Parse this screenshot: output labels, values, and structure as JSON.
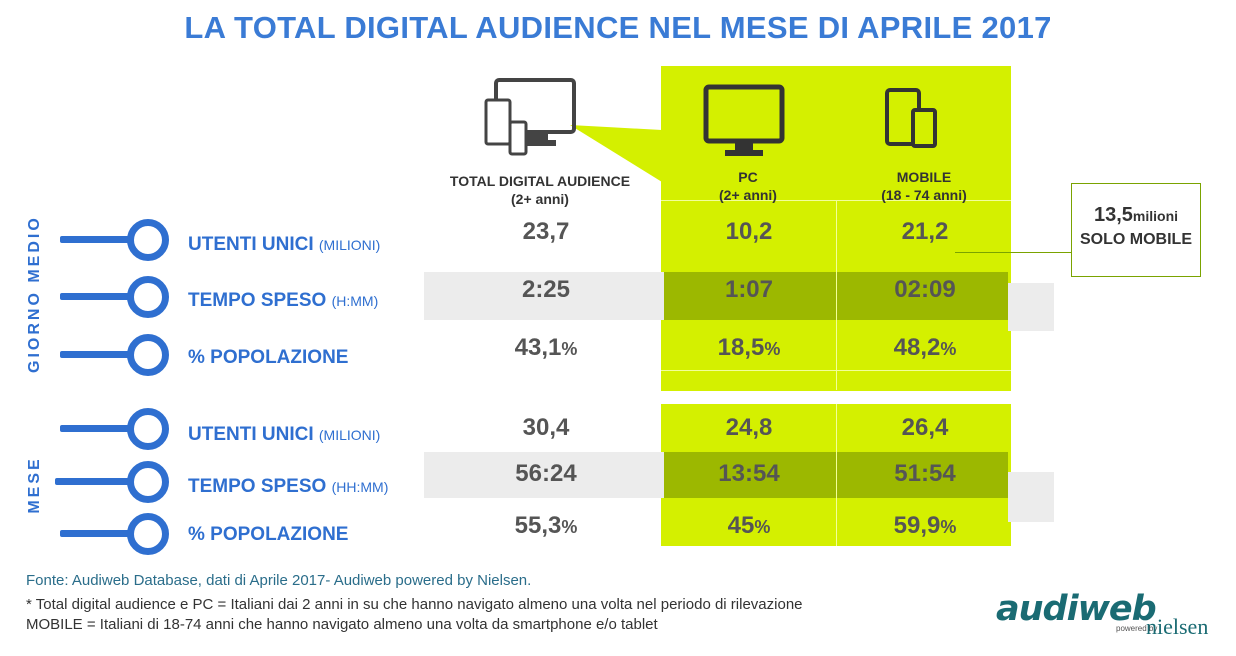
{
  "title": "LA TOTAL DIGITAL AUDIENCE NEL MESE DI APRILE 2017",
  "columns": [
    {
      "label": "TOTAL DIGITAL AUDIENCE",
      "sub": "(2+ anni)",
      "icon": "multi-device-icon"
    },
    {
      "label": "PC",
      "sub": "(2+ anni)",
      "icon": "monitor-icon"
    },
    {
      "label": "MOBILE",
      "sub": "(18 - 74 anni)",
      "icon": "tablet-phone-icon"
    }
  ],
  "groups": {
    "day": "GIORNO MEDIO",
    "month": "MESE"
  },
  "rows": [
    {
      "label": "UTENTI UNICI",
      "unit": "(MILIONI)",
      "values": [
        "23,7",
        "10,2",
        "21,2"
      ],
      "suffix": [
        "",
        "",
        ""
      ]
    },
    {
      "label": "TEMPO SPESO",
      "unit": "(H:MM)",
      "values": [
        "2:25",
        "1:07",
        "02:09"
      ],
      "suffix": [
        "",
        "",
        ""
      ]
    },
    {
      "label": "% POPOLAZIONE",
      "unit": "",
      "values": [
        "43,1",
        "18,5",
        "48,2"
      ],
      "suffix": [
        "%",
        "%",
        "%"
      ]
    },
    {
      "label": "UTENTI UNICI",
      "unit": "(MILIONI)",
      "values": [
        "30,4",
        "24,8",
        "26,4"
      ],
      "suffix": [
        "",
        "",
        ""
      ]
    },
    {
      "label": "TEMPO SPESO",
      "unit": "(HH:MM)",
      "values": [
        "56:24",
        "13:54",
        "51:54"
      ],
      "suffix": [
        "",
        "",
        ""
      ]
    },
    {
      "label": "% POPOLAZIONE",
      "unit": "",
      "values": [
        "55,3",
        "45",
        "59,9"
      ],
      "suffix": [
        "%",
        "%",
        "%"
      ]
    }
  ],
  "callout": {
    "value": "13,5",
    "unit": "milioni",
    "text": "SOLO MOBILE"
  },
  "footer": {
    "source": "Fonte: Audiweb Database, dati di Aprile 2017- Audiweb powered by Nielsen.",
    "note1": "* Total digital audience e PC = Italiani dai 2 anni in su che hanno navigato almeno una volta nel periodo di rilevazione",
    "note2": "MOBILE = Italiani di 18-74 anni che hanno navigato almeno una volta da smartphone e/o tablet"
  },
  "logo": {
    "brand": "audiweb",
    "powered": "powered by",
    "partner": "nielsen"
  },
  "colors": {
    "title": "#3a7bd5",
    "green": "#d4f000",
    "dark_green": "#9cb800",
    "blue": "#2f6fd0"
  }
}
